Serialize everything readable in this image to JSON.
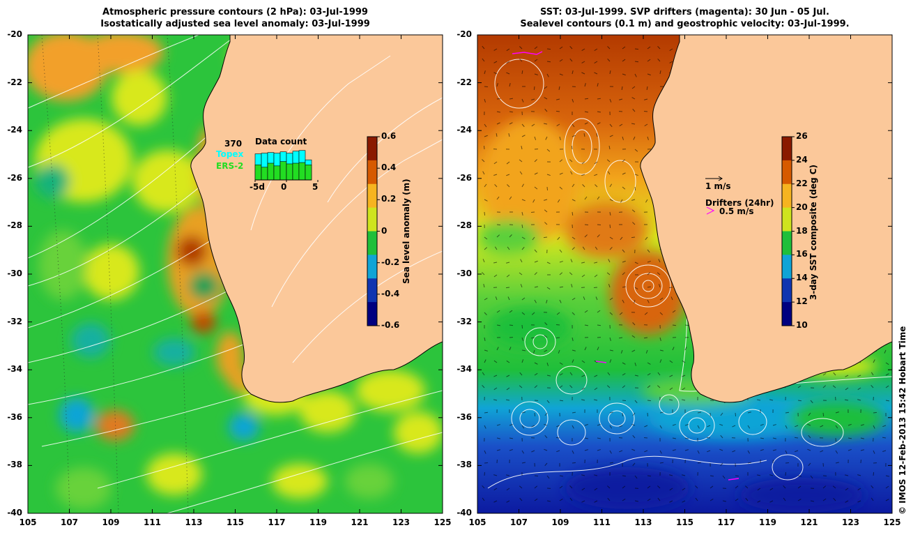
{
  "left_panel": {
    "title_line1": "Atmospheric pressure contours (2 hPa): 03-Jul-1999",
    "title_line2": "Isostatically adjusted sea level anomaly: 03-Jul-1999",
    "colorbar": {
      "title": "Sea level anomaly (m)",
      "ticks": [
        "0.6",
        "0.4",
        "0.2",
        "0",
        "-0.2",
        "-0.4",
        "-0.6"
      ],
      "colors": [
        "#8a1a00",
        "#d65a00",
        "#f6b420",
        "#cfe41e",
        "#1fbf3a",
        "#10a4d6",
        "#1035b0",
        "#000080"
      ]
    },
    "inset": {
      "count": "370",
      "heading": "Data count",
      "topex_label": "Topex",
      "ers_label": "ERS-2",
      "topex_color": "#00ffff",
      "ers_color": "#22dd22",
      "axis_ticks": [
        "-5d",
        "0",
        "5"
      ],
      "topex_values": [
        0.78,
        0.8,
        0.82,
        0.8,
        0.84,
        0.8,
        0.86,
        0.88,
        0.6
      ],
      "ers_values": [
        0.45,
        0.38,
        0.5,
        0.42,
        0.55,
        0.48,
        0.5,
        0.52,
        0.45
      ]
    }
  },
  "right_panel": {
    "title_line1": "SST: 03-Jul-1999. SVP drifters (magenta): 30 Jun - 05 Jul.",
    "title_line2": "Sealevel contours (0.1 m) and geostrophic velocity: 03-Jul-1999.",
    "colorbar": {
      "title": "3-day SST composite (deg C)",
      "ticks": [
        "26",
        "24",
        "22",
        "20",
        "18",
        "16",
        "14",
        "12",
        "10"
      ],
      "colors": [
        "#8a1a00",
        "#d65a00",
        "#f6b420",
        "#cfe41e",
        "#1fbf3a",
        "#10a4d6",
        "#1035b0",
        "#000080"
      ]
    },
    "legend": {
      "velocity_label": "1 m/s",
      "drifters_title": "Drifters (24hr)",
      "drifter_label": "0.5 m/s",
      "drifter_color": "#ff00ff"
    }
  },
  "axes": {
    "lat_ticks": [
      "-20",
      "-22",
      "-24",
      "-26",
      "-28",
      "-30",
      "-32",
      "-34",
      "-36",
      "-38",
      "-40"
    ],
    "lon_ticks": [
      "105",
      "107",
      "109",
      "111",
      "113",
      "115",
      "117",
      "119",
      "121",
      "123",
      "125"
    ]
  },
  "colors": {
    "land": "#fbc89a",
    "ocean_green": "#27c23a",
    "ocean_yellow": "#d8e81e"
  },
  "copyright": "© IMOS 12-Feb-2013 15:42 Hobart Time"
}
